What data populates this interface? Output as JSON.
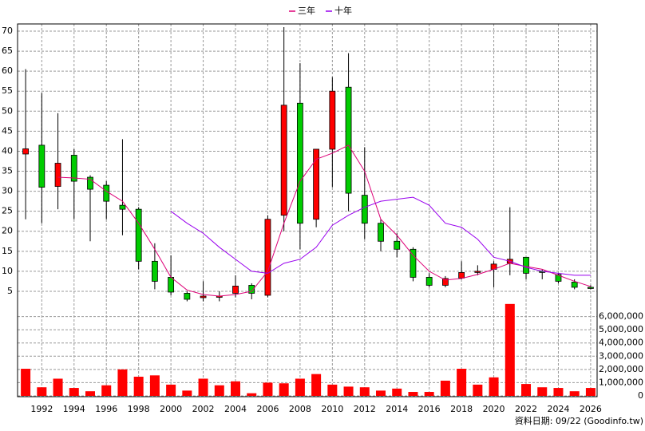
{
  "chart_data": {
    "type": "candlestick",
    "x": [
      1991,
      1992,
      1993,
      1994,
      1995,
      1996,
      1997,
      1998,
      1999,
      2000,
      2001,
      2002,
      2003,
      2004,
      2005,
      2006,
      2007,
      2008,
      2009,
      2010,
      2011,
      2012,
      2013,
      2014,
      2015,
      2016,
      2017,
      2018,
      2019,
      2020,
      2021,
      2022,
      2023,
      2024,
      2025,
      2026
    ],
    "open": [
      39.3,
      41.5,
      31.2,
      39,
      33.5,
      31.5,
      26.5,
      25.5,
      12.5,
      8.5,
      4.5,
      3.4,
      3.5,
      4.5,
      6.5,
      4,
      24,
      52,
      23,
      40.5,
      56,
      29,
      22,
      17.5,
      15.5,
      8.5,
      6.5,
      8.3,
      9.8,
      10.5,
      12,
      13.5,
      10,
      9.2,
      7.3,
      6
    ],
    "high": [
      60.5,
      54.5,
      49.5,
      40.5,
      34,
      32.5,
      43,
      26,
      17,
      14,
      5,
      7.5,
      5,
      9,
      7,
      24,
      71,
      62,
      40.5,
      58.5,
      64.5,
      41,
      23,
      19.5,
      16,
      9.5,
      8.8,
      12.5,
      11.5,
      12.5,
      26,
      13.5,
      10.5,
      9.5,
      8,
      6.5
    ],
    "low": [
      23,
      22,
      25.5,
      23,
      17.5,
      23,
      19,
      10.5,
      5.5,
      4,
      2.5,
      2.5,
      2.5,
      3.5,
      3,
      3.5,
      20,
      15.5,
      21,
      31,
      25,
      18,
      15,
      13.5,
      7.5,
      6,
      6,
      8,
      9,
      6,
      9,
      8,
      8,
      7,
      5.5,
      5.5
    ],
    "close": [
      40.6,
      31,
      37,
      32.5,
      30.5,
      27.5,
      25.5,
      12.5,
      7.5,
      4.8,
      3,
      3.8,
      3.8,
      6.3,
      4.5,
      23,
      51.5,
      22,
      40.5,
      55,
      29.5,
      22,
      17.5,
      15.5,
      8.5,
      6.5,
      8.2,
      9.7,
      10,
      11.8,
      13,
      9.5,
      9.8,
      7.5,
      6,
      5.8
    ],
    "up_color": "#ff0000",
    "down_color": "#00cc00",
    "series": [
      {
        "name": "三年",
        "color": "#dd0077",
        "values": [
          null,
          null,
          33.5,
          33.3,
          33,
          30,
          27.5,
          22,
          15.5,
          8.5,
          5.3,
          4.2,
          3.8,
          4.2,
          5,
          10,
          22,
          32.5,
          38,
          39.5,
          41.5,
          35,
          23,
          19,
          14,
          10,
          7.8,
          8.2,
          9.2,
          10.5,
          12,
          11.2,
          10.5,
          9,
          7.5,
          6.2
        ]
      },
      {
        "name": "十年",
        "color": "#9900ee",
        "values": [
          null,
          null,
          null,
          null,
          null,
          null,
          null,
          null,
          null,
          25,
          22,
          19.5,
          16,
          13,
          10,
          9.5,
          12,
          13,
          16,
          21.5,
          24,
          26,
          27.5,
          28,
          28.5,
          26.5,
          22,
          21,
          18,
          13.5,
          12.5,
          11,
          10,
          9.5,
          9,
          9
        ]
      }
    ],
    "xlim": [
      1990.5,
      2026.4
    ],
    "xticks": [
      1992,
      1994,
      1996,
      1998,
      2000,
      2002,
      2004,
      2006,
      2008,
      2010,
      2012,
      2014,
      2016,
      2018,
      2020,
      2022,
      2024,
      2026
    ],
    "ylim": [
      2,
      71.8
    ],
    "yticks": [
      5,
      10,
      15,
      20,
      25,
      30,
      35,
      40,
      45,
      50,
      55,
      60,
      65,
      70
    ],
    "volume": {
      "color": "#ff0000",
      "values": [
        2050000,
        650000,
        1300000,
        600000,
        350000,
        800000,
        2000000,
        1450000,
        1550000,
        850000,
        400000,
        1300000,
        800000,
        1100000,
        200000,
        1000000,
        950000,
        1300000,
        1650000,
        850000,
        700000,
        650000,
        400000,
        550000,
        300000,
        300000,
        1150000,
        2050000,
        850000,
        1400000,
        6950000,
        900000,
        650000,
        600000,
        350000,
        600000
      ],
      "ylim": [
        0,
        7000000
      ],
      "yticks": [
        0,
        {
          "value": 1000000,
          "label": "1,000,000"
        },
        {
          "value": 2000000,
          "label": "2,000,000"
        },
        {
          "value": 3000000,
          "label": "3,000,000"
        },
        {
          "value": 4000000,
          "label": "4,000,000"
        },
        {
          "value": 5000000,
          "label": "5,000,000"
        },
        {
          "value": 6000000,
          "label": "6,000,000"
        }
      ]
    },
    "grid": true,
    "footer": "資料日期: 09/22  (Goodinfo.tw)"
  }
}
